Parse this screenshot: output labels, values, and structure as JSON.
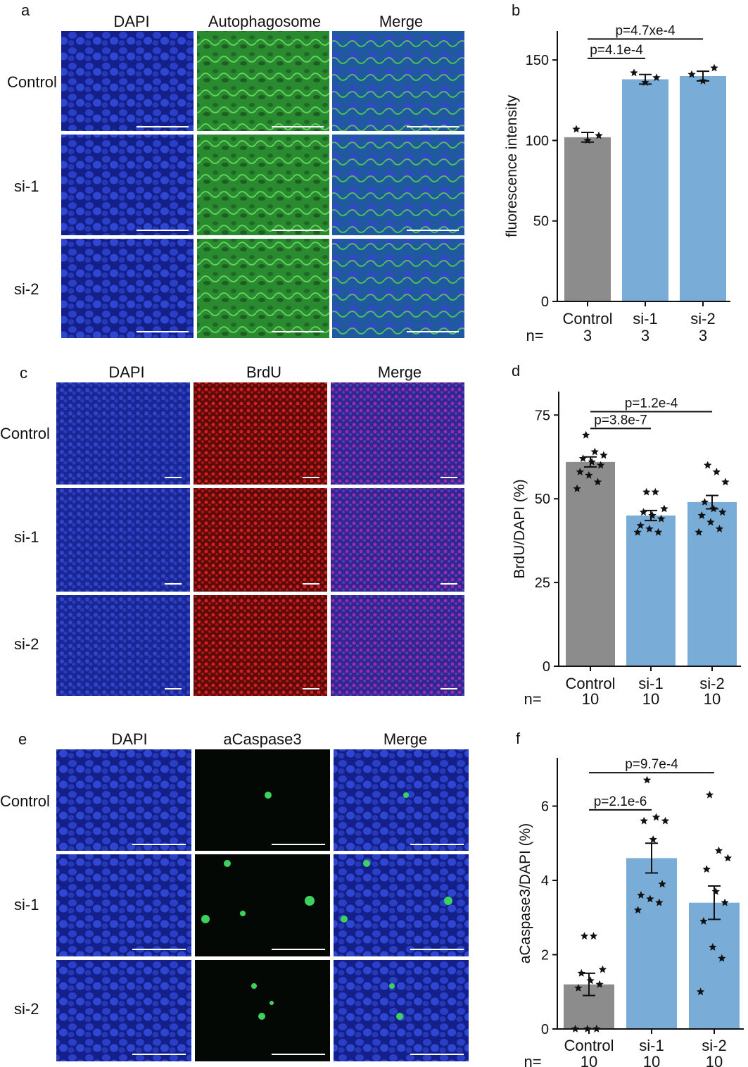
{
  "colors": {
    "control_bar": "#8c8c8c",
    "treatment_bar": "#79acd6",
    "dapi": "#1c2ea6",
    "autophagosome": "#2e9b3a",
    "brdu": "#c81b1b",
    "caspase": "#35c25a",
    "merge_purple": "#6a3aa8"
  },
  "panels": {
    "a": {
      "letter": "a",
      "columns": [
        "DAPI",
        "Autophagosome",
        "Merge"
      ],
      "rows": [
        "Control",
        "si-1",
        "si-2"
      ]
    },
    "c": {
      "letter": "c",
      "columns": [
        "DAPI",
        "BrdU",
        "Merge"
      ],
      "rows": [
        "Control",
        "si-1",
        "si-2"
      ]
    },
    "e": {
      "letter": "e",
      "columns": [
        "DAPI",
        "aCaspase3",
        "Merge"
      ],
      "rows": [
        "Control",
        "si-1",
        "si-2"
      ]
    }
  },
  "chart_data": [
    {
      "id": "b",
      "letter": "b",
      "type": "bar",
      "ylabel": "fluorescence intensity",
      "ylim": [
        0,
        168
      ],
      "yticks": [
        0,
        50,
        100,
        150
      ],
      "categories": [
        "Control",
        "si-1",
        "si-2"
      ],
      "n_label": "n=",
      "n": [
        "3",
        "3",
        "3"
      ],
      "values": [
        102,
        138,
        140
      ],
      "errors": [
        3,
        3,
        3
      ],
      "points": [
        [
          107,
          100,
          103
        ],
        [
          142,
          136,
          139
        ],
        [
          141,
          137,
          145
        ]
      ],
      "comparisons": [
        {
          "from": 0,
          "to": 1,
          "label": "p=4.1e-4",
          "y": 151
        },
        {
          "from": 0,
          "to": 2,
          "label": "p=4.7xe-4",
          "y": 163
        }
      ]
    },
    {
      "id": "d",
      "letter": "d",
      "type": "bar",
      "ylabel": "BrdU/DAPI (%)",
      "ylim": [
        0,
        82
      ],
      "yticks": [
        0,
        25,
        50,
        75
      ],
      "categories": [
        "Control",
        "si-1",
        "si-2"
      ],
      "n_label": "n=",
      "n": [
        "10",
        "10",
        "10"
      ],
      "values": [
        61,
        45,
        49
      ],
      "errors": [
        1.5,
        1.5,
        2
      ],
      "points": [
        [
          53,
          55,
          57,
          58,
          60,
          61,
          62,
          63,
          64,
          69
        ],
        [
          40,
          40,
          41,
          42,
          44,
          45,
          46,
          47,
          52,
          52
        ],
        [
          40,
          41,
          43,
          45,
          46,
          47,
          49,
          55,
          58,
          60
        ]
      ],
      "comparisons": [
        {
          "from": 0,
          "to": 1,
          "label": "p=3.8e-7",
          "y": 71
        },
        {
          "from": 0,
          "to": 2,
          "label": "p=1.2e-4",
          "y": 76
        }
      ]
    },
    {
      "id": "f",
      "letter": "f",
      "type": "bar",
      "ylabel": "aCaspase3/DAPI (%)",
      "ylim": [
        0,
        7.3
      ],
      "yticks": [
        0,
        2,
        4,
        6
      ],
      "categories": [
        "Control",
        "si-1",
        "si-2"
      ],
      "n_label": "n=",
      "n": [
        "10",
        "10",
        "10"
      ],
      "values": [
        1.2,
        4.6,
        3.4
      ],
      "errors": [
        0.3,
        0.4,
        0.45
      ],
      "points": [
        [
          0,
          0,
          0,
          1.1,
          1.2,
          1.3,
          1.5,
          1.6,
          2.5,
          2.5
        ],
        [
          3.2,
          3.4,
          3.5,
          3.6,
          3.9,
          5.1,
          5.6,
          5.6,
          5.7,
          6.7
        ],
        [
          1.0,
          1.9,
          2.2,
          2.9,
          3.4,
          3.7,
          4.3,
          4.6,
          4.8,
          6.3
        ]
      ],
      "comparisons": [
        {
          "from": 0,
          "to": 1,
          "label": "p=2.1e-6",
          "y": 5.9
        },
        {
          "from": 0,
          "to": 2,
          "label": "p=9.7e-4",
          "y": 6.9
        }
      ]
    }
  ]
}
